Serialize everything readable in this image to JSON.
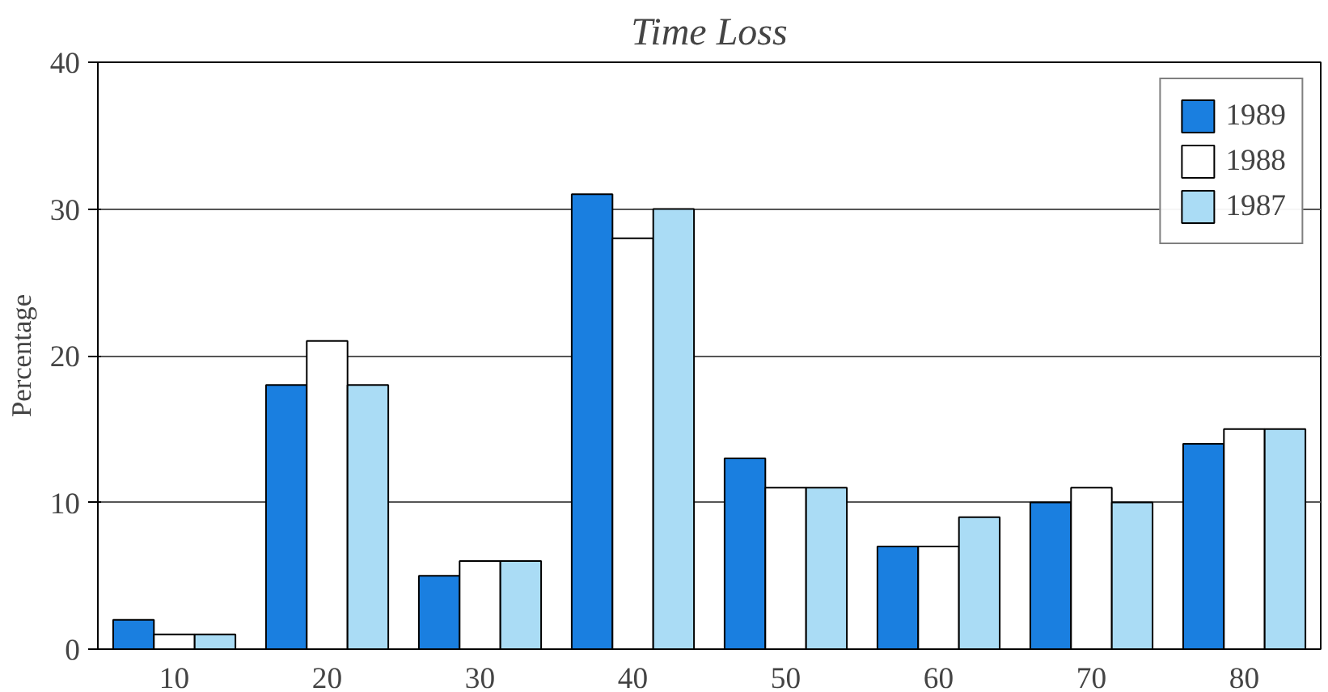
{
  "chart_data": {
    "type": "bar",
    "title": "Time Loss",
    "ylabel": "Percentage",
    "categories": [
      "10",
      "20",
      "30",
      "40",
      "50",
      "60",
      "70",
      "80"
    ],
    "series": [
      {
        "name": "1989",
        "color": "#1a7fe0",
        "values": [
          2,
          18,
          5,
          31,
          13,
          7,
          10,
          14
        ]
      },
      {
        "name": "1988",
        "color": "#ffffff",
        "values": [
          1,
          21,
          6,
          28,
          11,
          7,
          11,
          15
        ]
      },
      {
        "name": "1987",
        "color": "#aadcf5",
        "values": [
          1,
          18,
          6,
          30,
          11,
          9,
          10,
          15
        ]
      }
    ],
    "ylim": [
      0,
      40
    ],
    "yticks": [
      0,
      10,
      20,
      30,
      40
    ],
    "grid": "y",
    "legend": "top right"
  }
}
